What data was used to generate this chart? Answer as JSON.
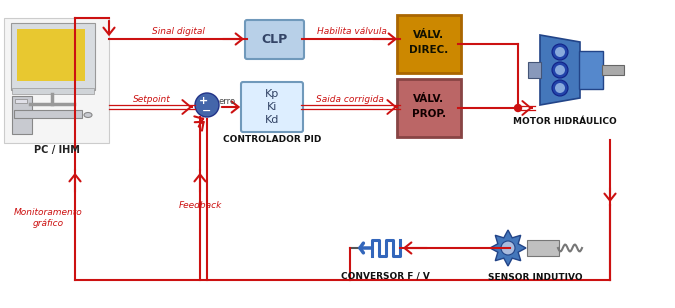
{
  "bg_color": "#ffffff",
  "arrow_color": "#cc1111",
  "arrow_color_blue": "#3366bb",
  "label_color": "#cc1111",
  "clp_box_color": "#b8d0e8",
  "clp_box_edge": "#7099bb",
  "pid_box_color": "#ddeeff",
  "pid_box_edge": "#7099bb",
  "valv_direc_fill": "#cc8800",
  "valv_direc_edge": "#aa6600",
  "valv_prop_fill": "#bb6666",
  "valv_prop_edge": "#884444",
  "sum_circle_color": "#4466aa",
  "sum_circle_edge": "#223388",
  "motor_body_color": "#4477bb",
  "motor_body_edge": "#224488",
  "gear_color": "#4477bb",
  "gear_edge": "#224488",
  "probe_color": "#aaaaaa",
  "probe_edge": "#666666",
  "pulse_color": "#3366bb",
  "line_lw": 1.5,
  "arrow_lw": 1.5,
  "labels": {
    "sinal_digital": "Sinal digital",
    "habilita_valvula": "Habilita válvula",
    "setpoint": "Setpoint",
    "saida_corrigida": "Saida corrigida",
    "controlador_pid": "CONTROLADOR PID",
    "motor_hidraulico": "MOTOR HIDRÁULICO",
    "pc_ihm": "PC / IHM",
    "clp": "CLP",
    "pid_kp": "Kp",
    "pid_ki": "Ki",
    "pid_kd": "Kd",
    "valv_direc1": "VÁLV.",
    "valv_direc2": "DIREC.",
    "valv_prop1": "VÁLV.",
    "valv_prop2": "PROP.",
    "monitoramento": "Monitoramento\ngráfico",
    "feedback": "Feedback",
    "conversor": "CONVERSOR F / V",
    "sensor": "SENSOR INDUTIVO",
    "erro": "erro"
  },
  "figsize": [
    6.75,
    3.08
  ],
  "dpi": 100
}
